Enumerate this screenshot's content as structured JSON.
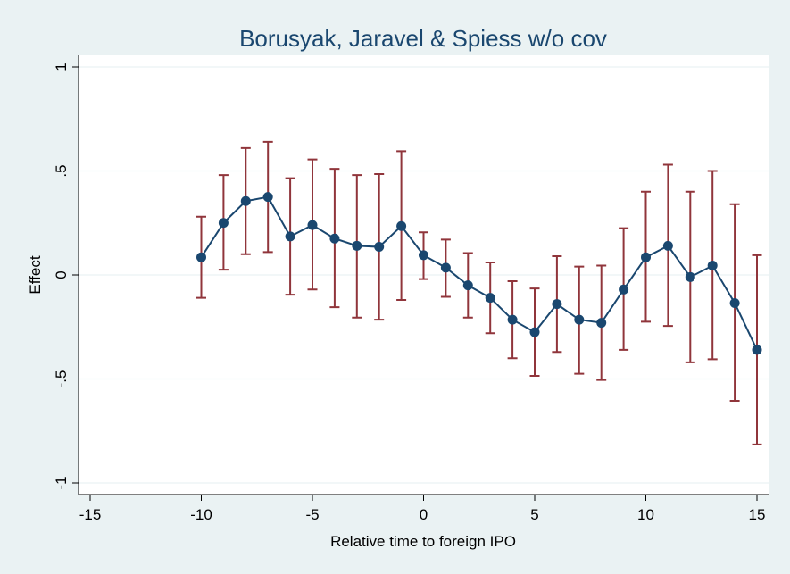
{
  "chart_data": {
    "type": "scatter",
    "title": "Borusyak, Jaravel & Spiess w/o cov",
    "xlabel": "Relative time to foreign IPO",
    "ylabel": "Effect",
    "xlim": [
      -15.5,
      15.5
    ],
    "ylim": [
      -1.05,
      1.05
    ],
    "xticks": [
      -15,
      -10,
      -5,
      0,
      5,
      10,
      15
    ],
    "xtick_labels": [
      "-15",
      "-10",
      "-5",
      "0",
      "5",
      "10",
      "15"
    ],
    "yticks": [
      -1,
      -0.5,
      0,
      0.5,
      1
    ],
    "ytick_labels": [
      "-1",
      "-.5",
      "0",
      ".5",
      "1"
    ],
    "grid": true,
    "colors": {
      "series": "#1a476f",
      "error_bars": "#90353b",
      "background": "#eaf2f3",
      "plot_area": "#ffffff"
    },
    "points": [
      {
        "x": -10,
        "y": 0.085,
        "lo": -0.11,
        "hi": 0.28
      },
      {
        "x": -9,
        "y": 0.25,
        "lo": 0.025,
        "hi": 0.48
      },
      {
        "x": -8,
        "y": 0.355,
        "lo": 0.1,
        "hi": 0.61
      },
      {
        "x": -7,
        "y": 0.375,
        "lo": 0.11,
        "hi": 0.64
      },
      {
        "x": -6,
        "y": 0.185,
        "lo": -0.095,
        "hi": 0.465
      },
      {
        "x": -5,
        "y": 0.24,
        "lo": -0.07,
        "hi": 0.555
      },
      {
        "x": -4,
        "y": 0.175,
        "lo": -0.155,
        "hi": 0.51
      },
      {
        "x": -3,
        "y": 0.14,
        "lo": -0.205,
        "hi": 0.48
      },
      {
        "x": -2,
        "y": 0.135,
        "lo": -0.215,
        "hi": 0.485
      },
      {
        "x": -1,
        "y": 0.235,
        "lo": -0.12,
        "hi": 0.595
      },
      {
        "x": 0,
        "y": 0.095,
        "lo": -0.02,
        "hi": 0.205
      },
      {
        "x": 1,
        "y": 0.035,
        "lo": -0.105,
        "hi": 0.17
      },
      {
        "x": 2,
        "y": -0.05,
        "lo": -0.205,
        "hi": 0.105
      },
      {
        "x": 3,
        "y": -0.11,
        "lo": -0.28,
        "hi": 0.06
      },
      {
        "x": 4,
        "y": -0.215,
        "lo": -0.4,
        "hi": -0.03
      },
      {
        "x": 5,
        "y": -0.275,
        "lo": -0.485,
        "hi": -0.065
      },
      {
        "x": 6,
        "y": -0.14,
        "lo": -0.37,
        "hi": 0.09
      },
      {
        "x": 7,
        "y": -0.215,
        "lo": -0.475,
        "hi": 0.04
      },
      {
        "x": 8,
        "y": -0.23,
        "lo": -0.505,
        "hi": 0.045
      },
      {
        "x": 9,
        "y": -0.07,
        "lo": -0.36,
        "hi": 0.225
      },
      {
        "x": 10,
        "y": 0.085,
        "lo": -0.225,
        "hi": 0.4
      },
      {
        "x": 11,
        "y": 0.14,
        "lo": -0.245,
        "hi": 0.53
      },
      {
        "x": 12,
        "y": -0.01,
        "lo": -0.42,
        "hi": 0.4
      },
      {
        "x": 13,
        "y": 0.045,
        "lo": -0.405,
        "hi": 0.5
      },
      {
        "x": 14,
        "y": -0.135,
        "lo": -0.605,
        "hi": 0.34
      },
      {
        "x": 15,
        "y": -0.36,
        "lo": -0.815,
        "hi": 0.095
      }
    ]
  }
}
